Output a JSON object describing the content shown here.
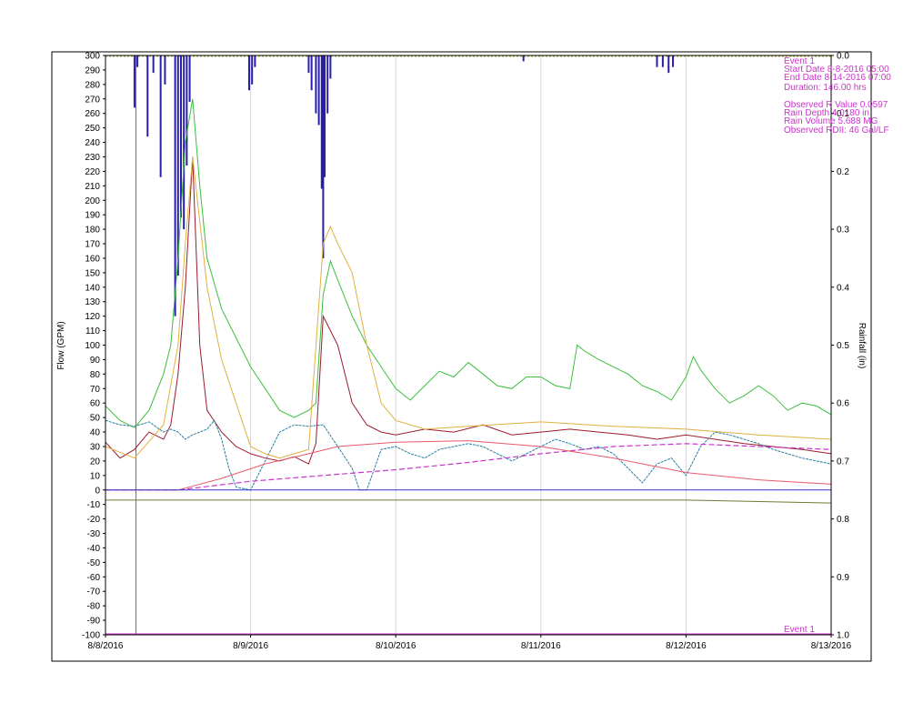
{
  "colors": {
    "rain_bar": "#2a1fa8",
    "event": "#cc33cc",
    "grid": "#d8d8d8",
    "observed_flow": "#3cbf3c",
    "rdii_flow": "#9b1b2e",
    "base_flow": "#2a7fa0",
    "modeled_flow": "#e0b040",
    "trend_magenta": "#cc33cc",
    "trend_pink": "#e85a6a",
    "zero_line": "#3333cc",
    "rain_top_line": "#aaaa22",
    "lower_line": "#777733",
    "last_date": "#3cbf3c"
  },
  "chart_data": {
    "type": "line",
    "ylabel": "Flow (GPM)",
    "y2label": "Rainfall (in)",
    "ylim": [
      -100,
      300
    ],
    "y_ticks": [
      "300",
      "290",
      "280",
      "270",
      "260",
      "250",
      "240",
      "230",
      "220",
      "210",
      "200",
      "190",
      "180",
      "170",
      "160",
      "150",
      "140",
      "130",
      "120",
      "110",
      "100",
      "90",
      "80",
      "70",
      "60",
      "50",
      "40",
      "30",
      "20",
      "10",
      "0",
      "-10",
      "-20",
      "-30",
      "-40",
      "-50",
      "-60",
      "-70",
      "-80",
      "-90",
      "-100"
    ],
    "y2lim": [
      0,
      1.0
    ],
    "y2_ticks": [
      "0.0",
      "0.1",
      "0.2",
      "0.3",
      "0.4",
      "0.5",
      "0.6",
      "0.7",
      "0.8",
      "0.9",
      "1.0"
    ],
    "xlim": [
      0,
      5
    ],
    "x_ticks": [
      "8/8/2016",
      "8/9/2016",
      "8/10/2016",
      "8/11/2016",
      "8/12/2016",
      "8/13/2016"
    ],
    "grid": "vertical",
    "event_markers": [
      {
        "x": 0.21,
        "label": "Event 1"
      }
    ],
    "annotations": [
      "Event 1",
      "Start Date 8-8-2016 05:00",
      "End Date 8-14-2016 07:00",
      "Duration: 146.00 hrs",
      "Observed R Value 0.0597",
      "Rain Depth 4.0180 in",
      "Rain Volume 5.688 MG",
      "Observed RDII: 46 Gal/LF"
    ],
    "rainfall": [
      {
        "x": 0.2,
        "y": 0.09
      },
      {
        "x": 0.22,
        "y": 0.02
      },
      {
        "x": 0.29,
        "y": 0.14
      },
      {
        "x": 0.33,
        "y": 0.03
      },
      {
        "x": 0.38,
        "y": 0.21
      },
      {
        "x": 0.41,
        "y": 0.05
      },
      {
        "x": 0.48,
        "y": 0.45
      },
      {
        "x": 0.5,
        "y": 0.38
      },
      {
        "x": 0.52,
        "y": 0.28
      },
      {
        "x": 0.54,
        "y": 0.3
      },
      {
        "x": 0.56,
        "y": 0.19
      },
      {
        "x": 0.58,
        "y": 0.08
      },
      {
        "x": 0.99,
        "y": 0.06
      },
      {
        "x": 1.01,
        "y": 0.05
      },
      {
        "x": 1.03,
        "y": 0.02
      },
      {
        "x": 1.4,
        "y": 0.03
      },
      {
        "x": 1.42,
        "y": 0.06
      },
      {
        "x": 1.45,
        "y": 0.1
      },
      {
        "x": 1.47,
        "y": 0.12
      },
      {
        "x": 1.49,
        "y": 0.23
      },
      {
        "x": 1.5,
        "y": 0.35
      },
      {
        "x": 1.51,
        "y": 0.21
      },
      {
        "x": 1.53,
        "y": 0.1
      },
      {
        "x": 1.55,
        "y": 0.04
      },
      {
        "x": 2.88,
        "y": 0.01
      },
      {
        "x": 3.8,
        "y": 0.02
      },
      {
        "x": 3.84,
        "y": 0.02
      },
      {
        "x": 3.88,
        "y": 0.03
      },
      {
        "x": 3.91,
        "y": 0.02
      }
    ],
    "series": [
      {
        "points": [
          [
            0,
            58
          ],
          [
            0.1,
            48
          ],
          [
            0.2,
            43
          ],
          [
            0.3,
            55
          ],
          [
            0.4,
            80
          ],
          [
            0.45,
            100
          ],
          [
            0.5,
            160
          ],
          [
            0.55,
            240
          ],
          [
            0.6,
            270
          ],
          [
            0.65,
            210
          ],
          [
            0.7,
            160
          ],
          [
            0.8,
            125
          ],
          [
            0.9,
            105
          ],
          [
            1.0,
            85
          ],
          [
            1.1,
            70
          ],
          [
            1.2,
            55
          ],
          [
            1.3,
            50
          ],
          [
            1.4,
            55
          ],
          [
            1.45,
            60
          ],
          [
            1.5,
            135
          ],
          [
            1.55,
            158
          ],
          [
            1.6,
            145
          ],
          [
            1.7,
            120
          ],
          [
            1.8,
            100
          ],
          [
            1.9,
            85
          ],
          [
            2.0,
            70
          ],
          [
            2.1,
            62
          ],
          [
            2.2,
            72
          ],
          [
            2.3,
            82
          ],
          [
            2.4,
            78
          ],
          [
            2.5,
            88
          ],
          [
            2.6,
            80
          ],
          [
            2.7,
            72
          ],
          [
            2.8,
            70
          ],
          [
            2.9,
            78
          ],
          [
            3.0,
            78
          ],
          [
            3.1,
            72
          ],
          [
            3.2,
            70
          ],
          [
            3.25,
            100
          ],
          [
            3.3,
            96
          ],
          [
            3.4,
            90
          ],
          [
            3.5,
            85
          ],
          [
            3.6,
            80
          ],
          [
            3.7,
            72
          ],
          [
            3.8,
            68
          ],
          [
            3.9,
            62
          ],
          [
            4.0,
            78
          ],
          [
            4.05,
            92
          ],
          [
            4.1,
            83
          ],
          [
            4.2,
            70
          ],
          [
            4.3,
            60
          ],
          [
            4.4,
            65
          ],
          [
            4.5,
            72
          ],
          [
            4.6,
            65
          ],
          [
            4.7,
            55
          ],
          [
            4.8,
            60
          ],
          [
            4.9,
            58
          ],
          [
            5.0,
            52
          ]
        ]
      },
      {
        "points": [
          [
            0,
            33
          ],
          [
            0.1,
            22
          ],
          [
            0.2,
            28
          ],
          [
            0.3,
            40
          ],
          [
            0.4,
            35
          ],
          [
            0.45,
            45
          ],
          [
            0.5,
            80
          ],
          [
            0.55,
            140
          ],
          [
            0.6,
            230
          ],
          [
            0.65,
            100
          ],
          [
            0.7,
            55
          ],
          [
            0.8,
            40
          ],
          [
            0.9,
            30
          ],
          [
            1.0,
            25
          ],
          [
            1.1,
            22
          ],
          [
            1.2,
            20
          ],
          [
            1.3,
            23
          ],
          [
            1.4,
            18
          ],
          [
            1.45,
            32
          ],
          [
            1.5,
            120
          ],
          [
            1.55,
            110
          ],
          [
            1.6,
            100
          ],
          [
            1.7,
            60
          ],
          [
            1.8,
            45
          ],
          [
            1.9,
            40
          ],
          [
            2.0,
            38
          ],
          [
            2.2,
            42
          ],
          [
            2.4,
            40
          ],
          [
            2.6,
            45
          ],
          [
            2.8,
            38
          ],
          [
            3.0,
            40
          ],
          [
            3.2,
            42
          ],
          [
            3.4,
            40
          ],
          [
            3.6,
            38
          ],
          [
            3.8,
            35
          ],
          [
            4.0,
            38
          ],
          [
            4.2,
            35
          ],
          [
            4.4,
            32
          ],
          [
            4.6,
            30
          ],
          [
            4.8,
            28
          ],
          [
            5.0,
            25
          ]
        ]
      },
      {
        "points": [
          [
            0,
            48
          ],
          [
            0.1,
            45
          ],
          [
            0.2,
            44
          ],
          [
            0.3,
            47
          ],
          [
            0.4,
            40
          ],
          [
            0.45,
            42
          ],
          [
            0.5,
            40
          ],
          [
            0.55,
            35
          ],
          [
            0.6,
            38
          ],
          [
            0.7,
            42
          ],
          [
            0.75,
            48
          ],
          [
            0.8,
            35
          ],
          [
            0.85,
            15
          ],
          [
            0.9,
            2
          ],
          [
            1.0,
            0
          ],
          [
            1.1,
            20
          ],
          [
            1.2,
            40
          ],
          [
            1.3,
            45
          ],
          [
            1.4,
            44
          ],
          [
            1.5,
            45
          ],
          [
            1.6,
            30
          ],
          [
            1.7,
            15
          ],
          [
            1.75,
            0
          ],
          [
            1.8,
            0
          ],
          [
            1.9,
            28
          ],
          [
            2.0,
            30
          ],
          [
            2.1,
            25
          ],
          [
            2.2,
            22
          ],
          [
            2.3,
            28
          ],
          [
            2.4,
            30
          ],
          [
            2.5,
            32
          ],
          [
            2.6,
            30
          ],
          [
            2.7,
            25
          ],
          [
            2.8,
            20
          ],
          [
            2.9,
            25
          ],
          [
            3.0,
            30
          ],
          [
            3.1,
            35
          ],
          [
            3.2,
            32
          ],
          [
            3.3,
            28
          ],
          [
            3.4,
            30
          ],
          [
            3.5,
            25
          ],
          [
            3.6,
            15
          ],
          [
            3.7,
            5
          ],
          [
            3.8,
            18
          ],
          [
            3.9,
            22
          ],
          [
            4.0,
            10
          ],
          [
            4.1,
            30
          ],
          [
            4.2,
            40
          ],
          [
            4.3,
            38
          ],
          [
            4.4,
            35
          ],
          [
            4.5,
            32
          ],
          [
            4.6,
            28
          ],
          [
            4.7,
            25
          ],
          [
            4.8,
            22
          ],
          [
            4.9,
            20
          ],
          [
            5.0,
            18
          ]
        ]
      },
      {
        "points": [
          [
            0,
            30
          ],
          [
            0.2,
            22
          ],
          [
            0.4,
            45
          ],
          [
            0.5,
            100
          ],
          [
            0.55,
            170
          ],
          [
            0.6,
            230
          ],
          [
            0.7,
            140
          ],
          [
            0.8,
            90
          ],
          [
            0.9,
            60
          ],
          [
            1.0,
            30
          ],
          [
            1.1,
            25
          ],
          [
            1.2,
            22
          ],
          [
            1.3,
            25
          ],
          [
            1.4,
            28
          ],
          [
            1.5,
            170
          ],
          [
            1.55,
            182
          ],
          [
            1.6,
            170
          ],
          [
            1.7,
            150
          ],
          [
            1.8,
            100
          ],
          [
            1.9,
            60
          ],
          [
            2.0,
            48
          ],
          [
            2.2,
            42
          ],
          [
            2.5,
            44
          ],
          [
            3.0,
            47
          ],
          [
            3.5,
            44
          ],
          [
            4.0,
            42
          ],
          [
            4.5,
            38
          ],
          [
            5.0,
            35
          ]
        ]
      },
      {
        "points": [
          [
            0,
            0
          ],
          [
            0.21,
            0
          ],
          [
            0.5,
            0
          ],
          [
            1.0,
            6
          ],
          [
            1.5,
            10
          ],
          [
            2.0,
            14
          ],
          [
            2.5,
            19
          ],
          [
            3.0,
            25
          ],
          [
            3.5,
            30
          ],
          [
            4.0,
            32
          ],
          [
            4.5,
            30
          ],
          [
            5.0,
            28
          ]
        ]
      },
      {
        "points": [
          [
            0,
            0
          ],
          [
            0.5,
            0
          ],
          [
            0.8,
            8
          ],
          [
            1.1,
            18
          ],
          [
            1.4,
            25
          ],
          [
            1.6,
            30
          ],
          [
            2.0,
            33
          ],
          [
            2.5,
            34
          ],
          [
            3.0,
            30
          ],
          [
            3.5,
            22
          ],
          [
            4.0,
            12
          ],
          [
            4.5,
            7
          ],
          [
            5.0,
            4
          ]
        ]
      },
      {
        "points": [
          [
            0,
            0
          ],
          [
            5,
            0
          ]
        ]
      },
      {
        "points": [
          [
            0,
            -7
          ],
          [
            4.0,
            -7
          ],
          [
            5.0,
            -9
          ]
        ]
      }
    ]
  }
}
